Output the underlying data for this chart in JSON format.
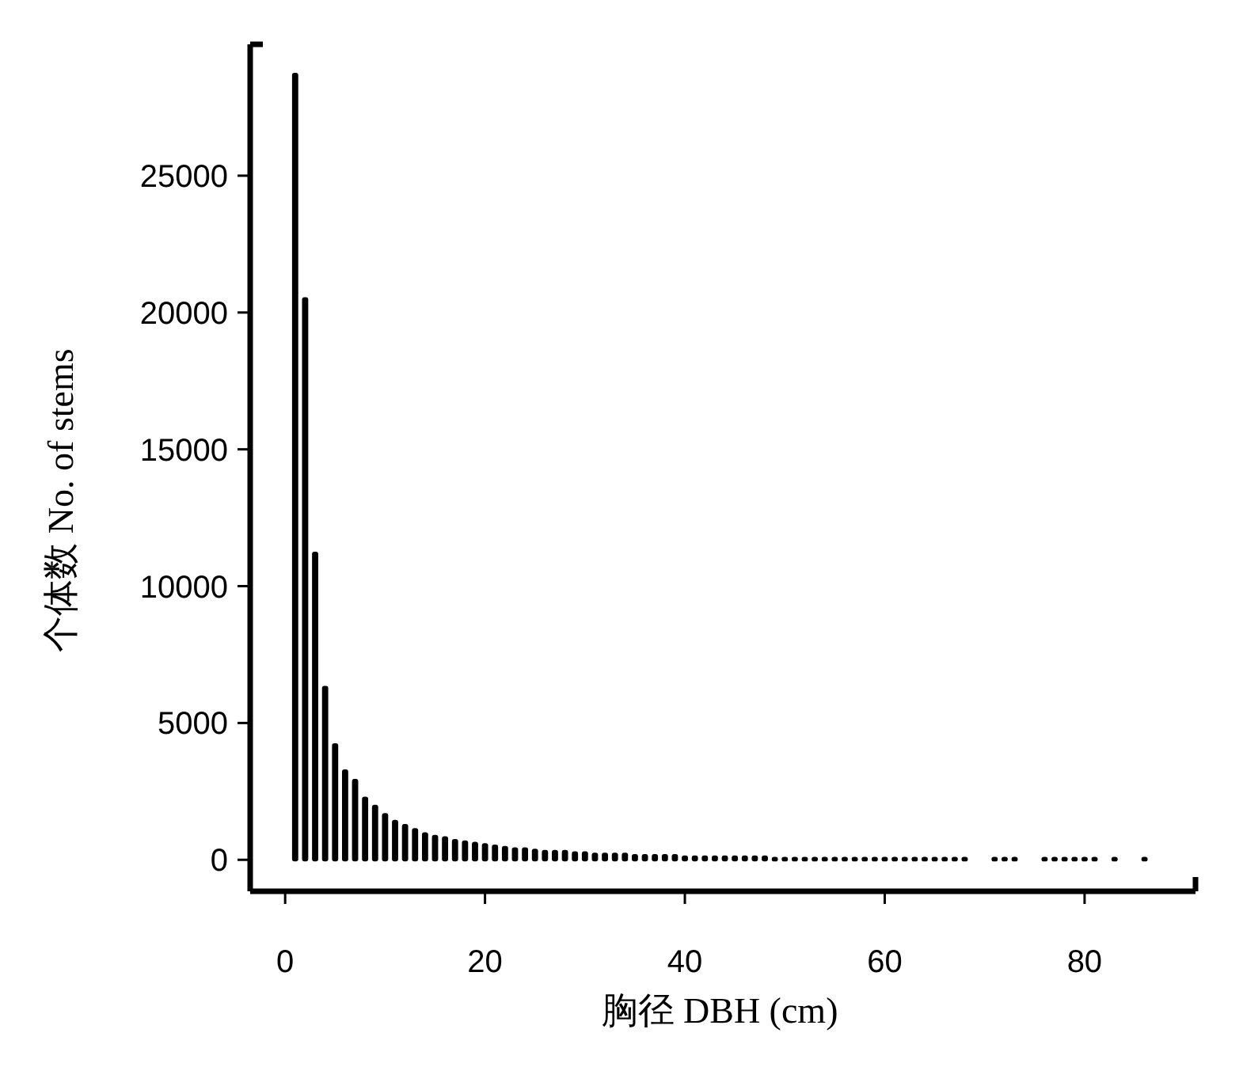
{
  "chart_data": {
    "type": "bar",
    "xlabel": "胸径 DBH (cm)",
    "ylabel": "个体数 No. of stems",
    "x": [
      1,
      2,
      3,
      4,
      5,
      6,
      7,
      8,
      9,
      10,
      11,
      12,
      13,
      14,
      15,
      16,
      17,
      18,
      19,
      20,
      21,
      22,
      23,
      24,
      25,
      26,
      27,
      28,
      29,
      30,
      31,
      32,
      33,
      34,
      35,
      36,
      37,
      38,
      39,
      40,
      41,
      42,
      43,
      44,
      45,
      46,
      47,
      48,
      49,
      50,
      51,
      52,
      53,
      54,
      55,
      56,
      57,
      58,
      59,
      60,
      61,
      62,
      63,
      64,
      65,
      66,
      67,
      68,
      71,
      72,
      73,
      76,
      77,
      78,
      79,
      80,
      81,
      83,
      86
    ],
    "values": [
      28700,
      20500,
      11200,
      6300,
      4200,
      3250,
      2900,
      2250,
      1950,
      1650,
      1400,
      1250,
      1100,
      950,
      850,
      800,
      700,
      650,
      600,
      550,
      500,
      450,
      400,
      400,
      350,
      300,
      300,
      300,
      250,
      250,
      200,
      200,
      200,
      200,
      150,
      150,
      150,
      150,
      150,
      100,
      100,
      100,
      100,
      100,
      100,
      100,
      100,
      100,
      50,
      50,
      50,
      50,
      50,
      50,
      50,
      50,
      50,
      50,
      50,
      50,
      50,
      50,
      50,
      50,
      50,
      50,
      50,
      50,
      50,
      50,
      50,
      50,
      50,
      50,
      50,
      50,
      50,
      50,
      50
    ],
    "color": "#000000",
    "xlim": [
      -3.5,
      91.1
    ],
    "ylim": [
      -1150,
      29800
    ],
    "xticks": [
      0,
      20,
      40,
      60,
      80
    ],
    "yticks": [
      0,
      5000,
      10000,
      15000,
      20000,
      25000
    ],
    "grid": false
  }
}
